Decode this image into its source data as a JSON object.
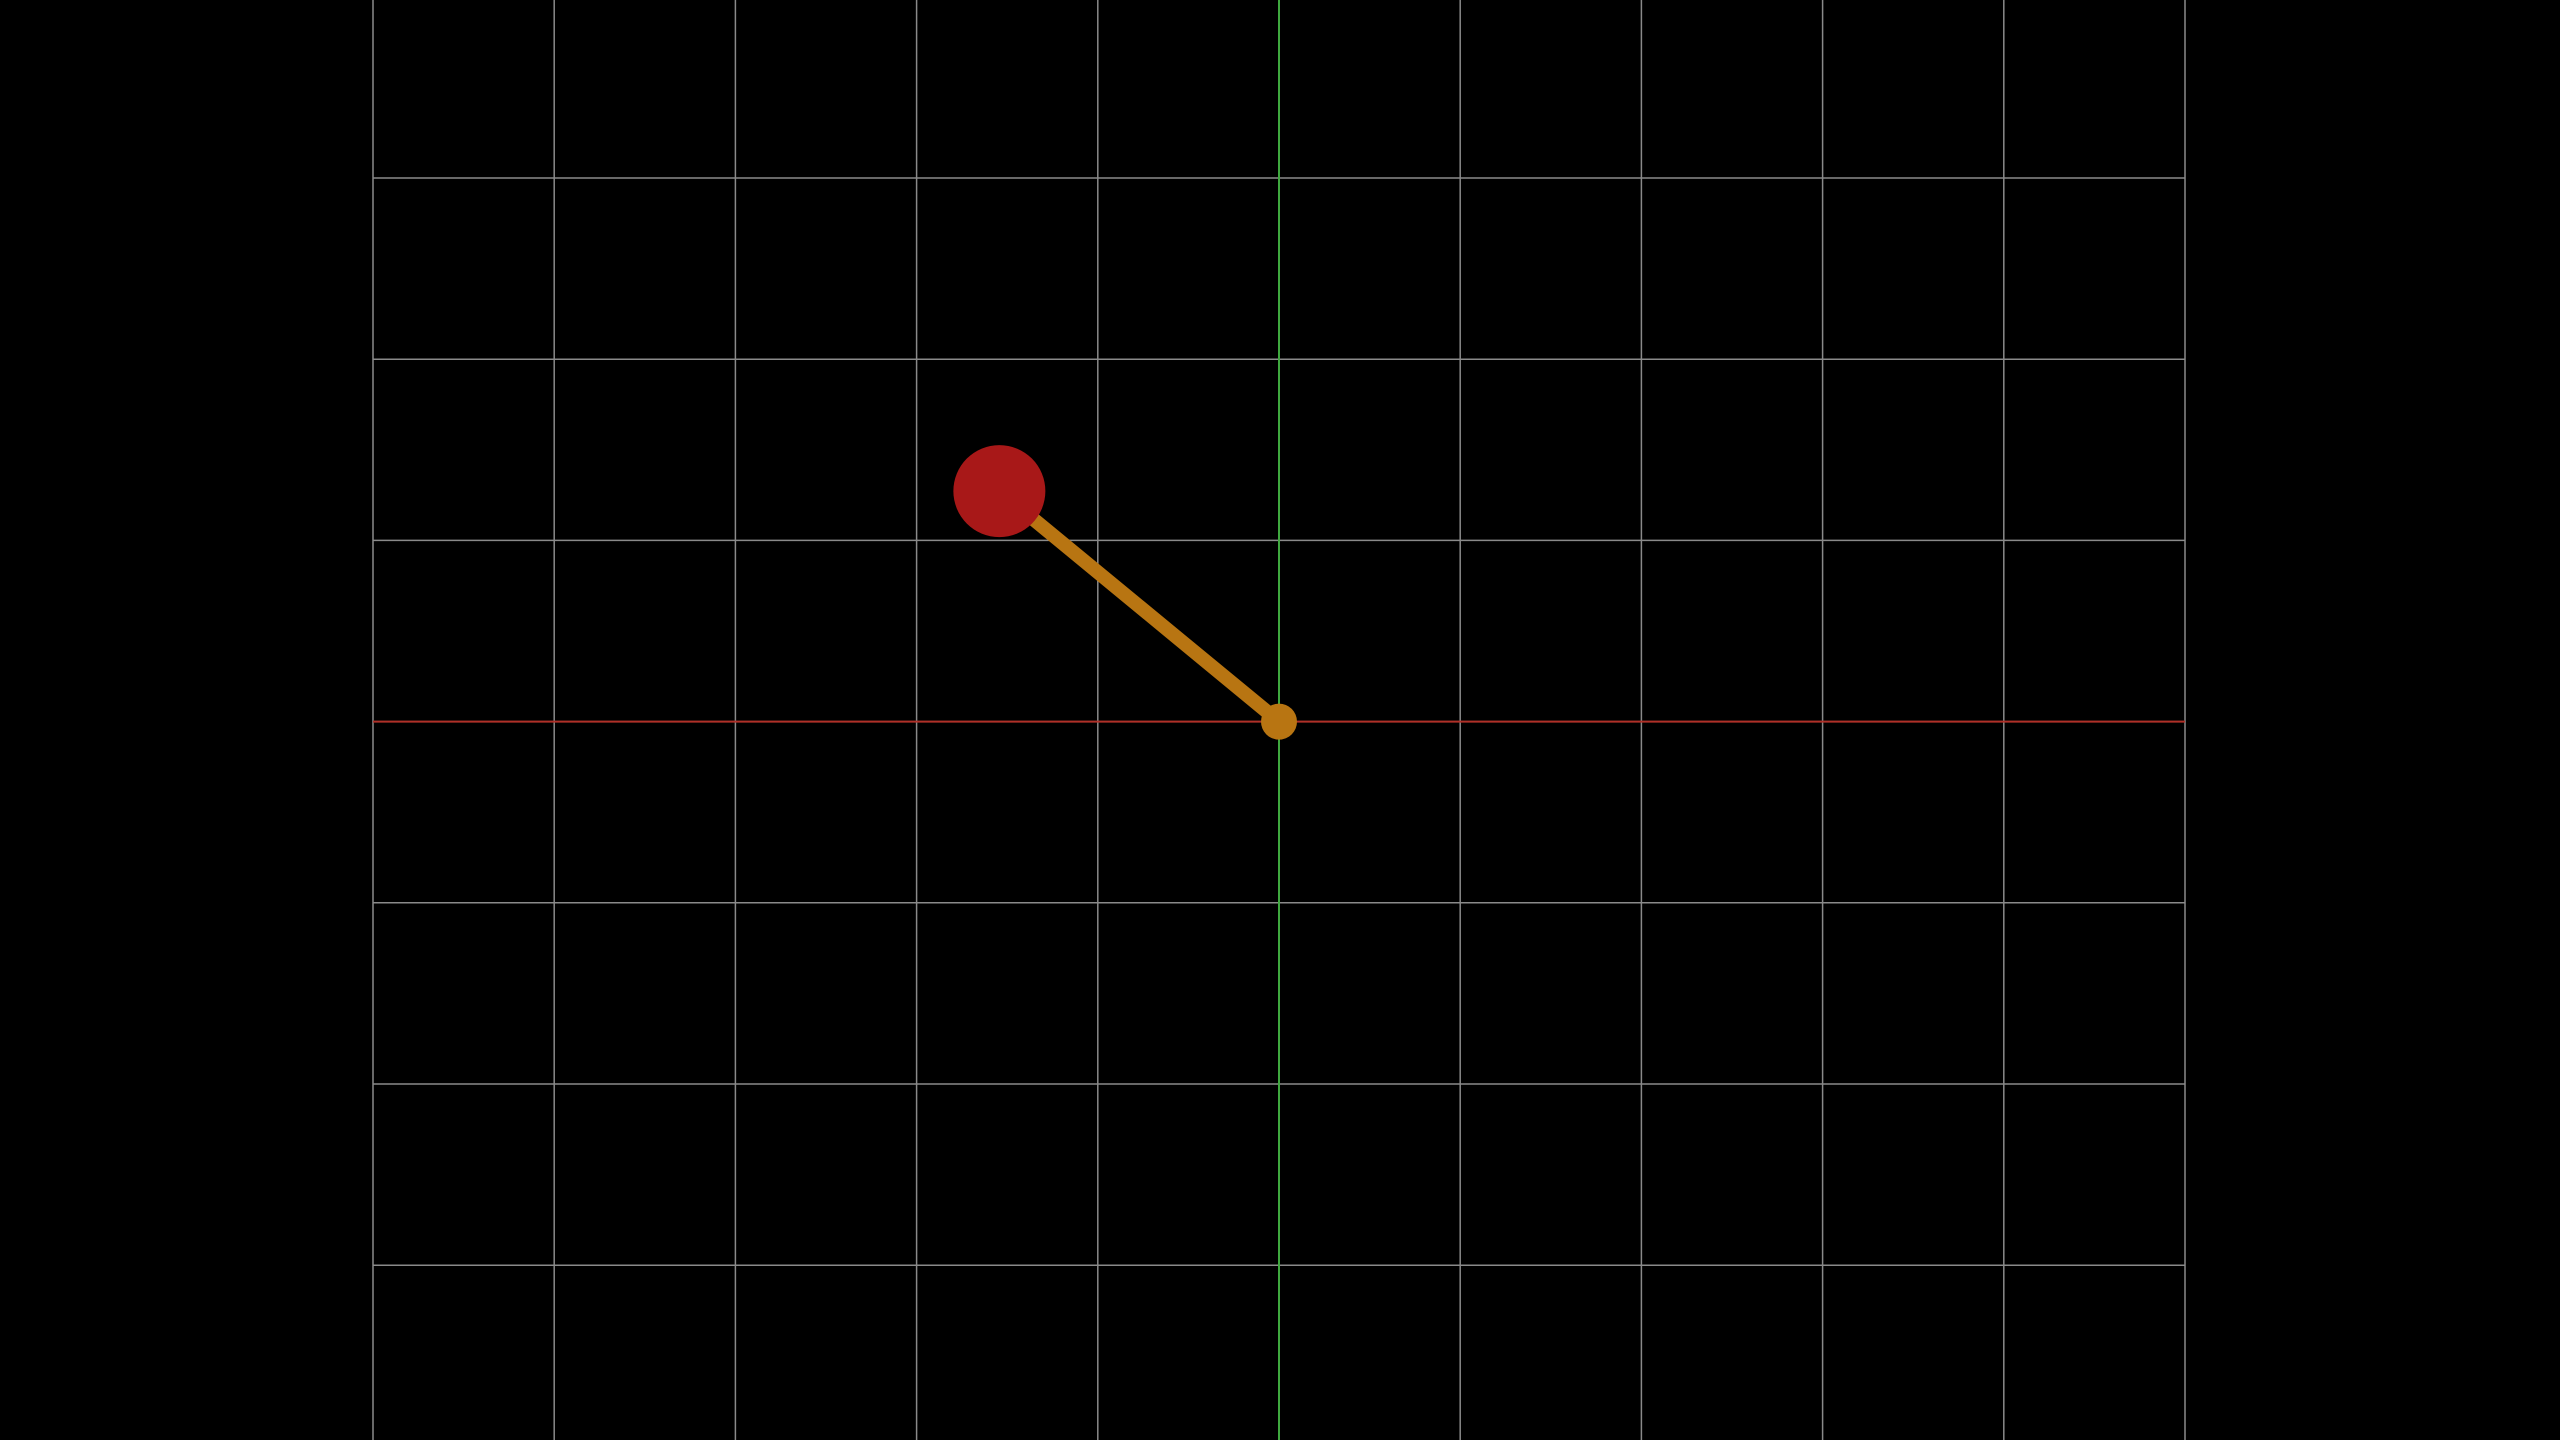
{
  "scene": {
    "type": "pendulum-simulation",
    "background_color": "#000000",
    "grid": {
      "visible": true,
      "columns": 10,
      "rows": 8,
      "line_color": "#8a8a8a",
      "x_axis_color": "#b03028",
      "y_axis_color": "#3fa83f"
    },
    "pendulum": {
      "angle_from_vertical_deg": -50.5,
      "length_cells": 2.0,
      "rod_color": "#b87512",
      "pivot_color": "#b87512",
      "bob_color": "#a81818",
      "pivot_icon": "pivot-dot",
      "bob_icon": "ball"
    }
  }
}
